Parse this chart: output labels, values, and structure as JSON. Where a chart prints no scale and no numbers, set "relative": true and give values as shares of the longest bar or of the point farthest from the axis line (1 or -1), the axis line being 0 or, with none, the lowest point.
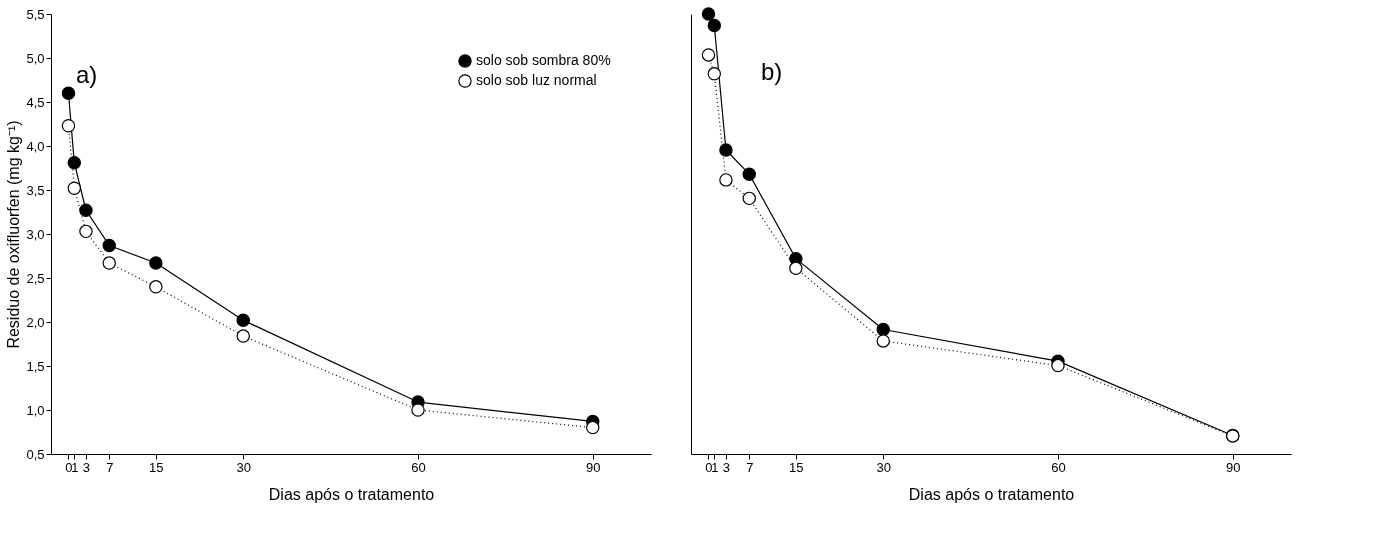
{
  "chart_data": [
    {
      "type": "line",
      "title": "a)",
      "xlabel": "Dias após o tratamento",
      "ylabel": "Residuo de oxifluorfen (mg kg⁻¹)",
      "x": [
        0,
        1,
        3,
        7,
        15,
        30,
        60,
        90
      ],
      "series": [
        {
          "name": "solo sob sombra 80%",
          "color": "#000000",
          "line_style": "solid",
          "values": [
            4.6,
            3.81,
            3.27,
            2.87,
            2.67,
            2.02,
            1.09,
            0.87
          ]
        },
        {
          "name": "solo sob luz normal",
          "color": "#000000",
          "line_style": "dotted",
          "values": [
            4.23,
            3.52,
            3.03,
            2.67,
            2.4,
            1.84,
            1.0,
            0.8
          ]
        }
      ],
      "xlim": [
        -3,
        100
      ],
      "xticks": [
        0,
        1,
        3,
        7,
        15,
        30,
        60,
        90
      ],
      "ylim": [
        0.5,
        5.5
      ],
      "yticks": [
        {
          "value": 0.5,
          "label": "0,5"
        },
        {
          "value": 1.0,
          "label": "1,0"
        },
        {
          "value": 1.5,
          "label": "1,5"
        },
        {
          "value": 2.0,
          "label": "2,0"
        },
        {
          "value": 2.5,
          "label": "2,5"
        },
        {
          "value": 3.0,
          "label": "3,0"
        },
        {
          "value": 3.5,
          "label": "3,5"
        },
        {
          "value": 4.0,
          "label": "4,0"
        },
        {
          "value": 4.5,
          "label": "4,5"
        },
        {
          "value": 5.0,
          "label": "5,0"
        },
        {
          "value": 5.5,
          "label": "5,5"
        }
      ],
      "marker": "circle",
      "legend": "top right",
      "grid": false
    },
    {
      "type": "line",
      "title": "b)",
      "xlabel": "Dias após o tratamento",
      "relative": true,
      "x": [
        0,
        1,
        3,
        7,
        15,
        30,
        60,
        90
      ],
      "series": [
        {
          "color": "#000000",
          "line_style": "solid",
          "values": [
            1.0,
            0.974,
            0.691,
            0.636,
            0.444,
            0.283,
            0.211,
            0.042
          ]
        },
        {
          "color": "#000000",
          "line_style": "dotted",
          "values": [
            0.907,
            0.864,
            0.623,
            0.581,
            0.422,
            0.257,
            0.201,
            0.041
          ]
        }
      ],
      "xlim": [
        -3,
        100
      ],
      "xticks": [
        0,
        1,
        3,
        7,
        15,
        30,
        60,
        90
      ],
      "marker": "circle",
      "grid": false
    }
  ]
}
